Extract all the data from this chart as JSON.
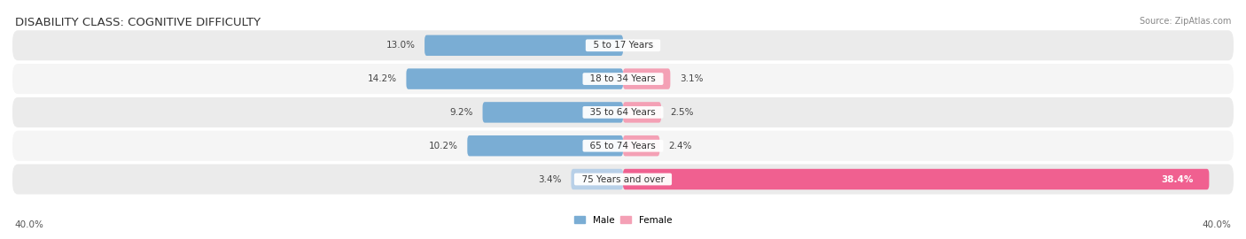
{
  "title": "DISABILITY CLASS: COGNITIVE DIFFICULTY",
  "source": "Source: ZipAtlas.com",
  "categories": [
    "5 to 17 Years",
    "18 to 34 Years",
    "35 to 64 Years",
    "65 to 74 Years",
    "75 Years and over"
  ],
  "male_values": [
    13.0,
    14.2,
    9.2,
    10.2,
    3.4
  ],
  "female_values": [
    0.0,
    3.1,
    2.5,
    2.4,
    38.4
  ],
  "male_color": "#7aadd4",
  "female_color": "#f4a0b5",
  "male_color_last": "#b8d0e8",
  "female_color_last": "#f06090",
  "axis_max": 40.0,
  "axis_label_left": "40.0%",
  "axis_label_right": "40.0%",
  "row_bg_odd": "#ebebeb",
  "row_bg_even": "#f5f5f5",
  "title_fontsize": 9.5,
  "source_fontsize": 7,
  "label_fontsize": 7.5,
  "value_fontsize": 7.5,
  "category_fontsize": 7.5
}
